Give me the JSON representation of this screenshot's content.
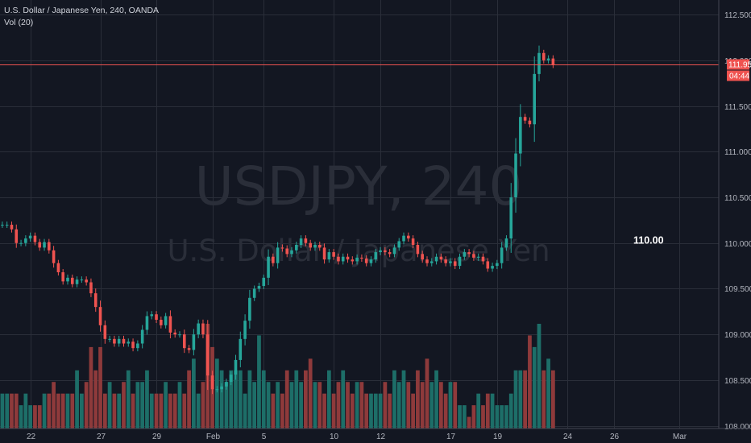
{
  "header": {
    "title": "U.S. Dollar / Japanese Yen, 240, OANDA",
    "volume_label": "Vol (20)"
  },
  "watermark": {
    "symbol": "USDJPY, 240",
    "name": "U.S. Dollar / Japanese Yen"
  },
  "chart_data": {
    "type": "candlestick",
    "symbol": "USDJPY",
    "timeframe": "240",
    "source": "OANDA",
    "y_axis": {
      "ylim": [
        107.97,
        112.66
      ],
      "ticks": [
        "112.500",
        "112.000",
        "111.500",
        "111.000",
        "110.500",
        "110.000",
        "109.500",
        "109.000",
        "108.500",
        "108.000"
      ]
    },
    "x_axis": {
      "ticks": [
        {
          "label": "22",
          "index": 6
        },
        {
          "label": "27",
          "index": 21
        },
        {
          "label": "29",
          "index": 33
        },
        {
          "label": "Feb",
          "index": 45
        },
        {
          "label": "5",
          "index": 56
        },
        {
          "label": "10",
          "index": 71
        },
        {
          "label": "12",
          "index": 81
        },
        {
          "label": "17",
          "index": 96
        },
        {
          "label": "19",
          "index": 106
        },
        {
          "label": "24",
          "index": 121
        },
        {
          "label": "26",
          "index": 131
        },
        {
          "label": "Mar",
          "index": 145
        }
      ],
      "total_slots": 154
    },
    "last_price": {
      "value": 111.951,
      "label": "111.951",
      "countdown": "04:44"
    },
    "annotation": {
      "text": "110.00",
      "price": 110.0
    },
    "closes": [
      110.2,
      110.2,
      110.15,
      110.0,
      110.0,
      110.05,
      110.08,
      110.01,
      109.95,
      110.01,
      109.92,
      109.78,
      109.68,
      109.58,
      109.62,
      109.55,
      109.6,
      109.6,
      109.57,
      109.45,
      109.3,
      109.1,
      108.95,
      108.95,
      108.9,
      108.95,
      108.9,
      108.92,
      108.85,
      108.9,
      109.05,
      109.2,
      109.22,
      109.16,
      109.1,
      109.2,
      109.02,
      109.0,
      109.0,
      108.85,
      108.83,
      109.0,
      109.12,
      109.0,
      108.55,
      108.4,
      108.4,
      108.43,
      108.48,
      108.56,
      108.72,
      108.95,
      109.15,
      109.4,
      109.5,
      109.53,
      109.62,
      109.85,
      109.78,
      109.95,
      109.94,
      109.88,
      109.92,
      109.98,
      110.05,
      110.0,
      109.95,
      109.98,
      109.95,
      109.82,
      109.9,
      109.85,
      109.8,
      109.85,
      109.82,
      109.8,
      109.84,
      109.83,
      109.78,
      109.82,
      109.9,
      109.92,
      109.9,
      109.88,
      109.95,
      110.02,
      110.08,
      110.05,
      109.98,
      109.88,
      109.82,
      109.78,
      109.8,
      109.85,
      109.82,
      109.78,
      109.8,
      109.75,
      109.85,
      109.9,
      109.88,
      109.84,
      109.85,
      109.8,
      109.72,
      109.75,
      109.78,
      109.95,
      110.05,
      110.5,
      110.98,
      111.38,
      111.34,
      111.3,
      111.85,
      112.08,
      112.0,
      112.02,
      111.95
    ],
    "volumes": [
      3,
      3,
      3,
      3,
      2,
      3,
      2,
      2,
      2,
      3,
      3,
      4,
      3,
      3,
      3,
      3,
      5,
      3,
      4,
      7,
      5,
      7,
      3,
      4,
      3,
      3,
      4,
      5,
      3,
      4,
      4,
      5,
      3,
      3,
      3,
      4,
      3,
      3,
      4,
      3,
      5,
      6,
      3,
      4,
      9,
      7,
      6,
      5,
      4,
      5,
      5,
      5,
      3,
      5,
      4,
      8,
      5,
      4,
      3,
      4,
      3,
      5,
      4,
      5,
      4,
      5,
      6,
      4,
      4,
      3,
      5,
      3,
      4,
      5,
      4,
      3,
      4,
      4,
      3,
      3,
      3,
      3,
      4,
      3,
      5,
      4,
      5,
      4,
      3,
      5,
      4,
      6,
      4,
      5,
      4,
      3,
      4,
      4,
      2,
      2,
      1,
      2,
      3,
      2,
      3,
      3,
      2,
      2,
      2,
      3,
      5,
      5,
      5,
      8,
      7,
      9,
      5,
      6,
      5
    ]
  }
}
